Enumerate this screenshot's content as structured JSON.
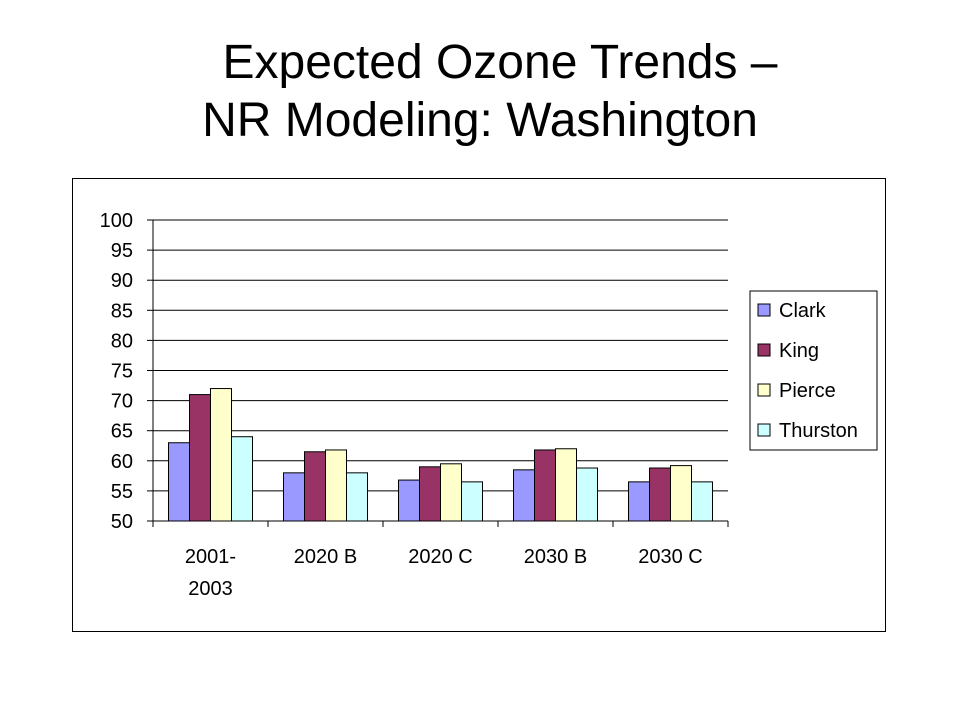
{
  "title": {
    "line1": "Expected Ozone Trends –",
    "line2": "NR Modeling: Washington"
  },
  "chart_data": {
    "type": "bar",
    "categories": [
      [
        "2001-",
        "2003"
      ],
      [
        "2020 B"
      ],
      [
        "2020 C"
      ],
      [
        "2030 B"
      ],
      [
        "2030 C"
      ]
    ],
    "series": [
      {
        "name": "Clark",
        "color": "#9999ff",
        "values": [
          63,
          58,
          56.8,
          58.5,
          56.5
        ]
      },
      {
        "name": "King",
        "color": "#993366",
        "values": [
          71,
          61.5,
          59,
          61.8,
          58.8
        ]
      },
      {
        "name": "Pierce",
        "color": "#ffffcc",
        "values": [
          72,
          61.8,
          59.5,
          62,
          59.2
        ]
      },
      {
        "name": "Thurston",
        "color": "#ccffff",
        "values": [
          64,
          58,
          56.5,
          58.8,
          56.5
        ]
      }
    ],
    "ylim": [
      50,
      100
    ],
    "ytick_step": 5,
    "grid": true,
    "legend_position": "right"
  }
}
